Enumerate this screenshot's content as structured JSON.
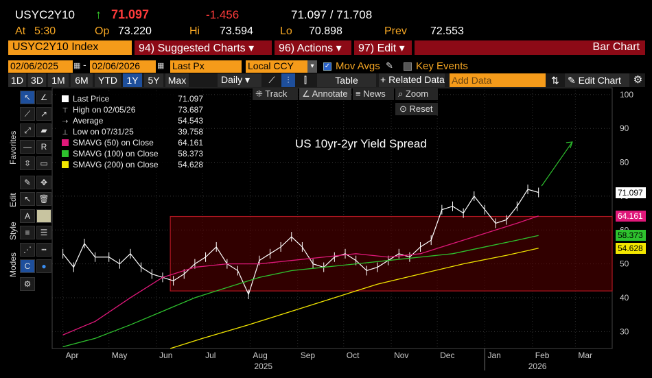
{
  "header": {
    "ticker": "USYC2Y10",
    "arrow": "↑",
    "last": "71.097",
    "change": "-1.456",
    "bid_ask": "71.097 / 71.708",
    "at_label": "At",
    "at_value": "5:30",
    "op_label": "Op",
    "op_value": "73.220",
    "hi_label": "Hi",
    "hi_value": "73.594",
    "lo_label": "Lo",
    "lo_value": "70.898",
    "prev_label": "Prev",
    "prev_value": "72.553"
  },
  "menubar": {
    "security": "USYC2Y10 Index",
    "suggested": "94) Suggested Charts ▾",
    "actions": "96) Actions ▾",
    "edit": "97) Edit ▾",
    "right_title": "Bar Chart"
  },
  "controls": {
    "start_date": "02/06/2025",
    "end_date": "02/06/2026",
    "field": "Last Px",
    "currency": "Local CCY",
    "mov_avgs": "Mov Avgs",
    "key_events": "Key Events"
  },
  "periods": [
    "1D",
    "3D",
    "1M",
    "6M",
    "YTD",
    "1Y",
    "5Y",
    "Max"
  ],
  "selected_period": "1Y",
  "toolbar": {
    "frequency": "Daily",
    "table": "Table",
    "related": "+ Related Data",
    "add_data_placeholder": "Add Data",
    "edit_chart": "Edit Chart",
    "track": "Track",
    "annotate": "Annotate",
    "news": "News",
    "zoom": "Zoom",
    "reset": "Reset"
  },
  "side_tabs": [
    "Favorites",
    "Edit",
    "Style",
    "Modes"
  ],
  "legend": [
    {
      "label": "Last Price",
      "value": "71.097",
      "color": "#ffffff",
      "kind": "box"
    },
    {
      "label": "High on 02/05/26",
      "value": "73.687",
      "color": "#ffffff",
      "kind": "hi"
    },
    {
      "label": "Average",
      "value": "54.543",
      "color": "#ffffff",
      "kind": "avg"
    },
    {
      "label": "Low on 07/31/25",
      "value": "39.758",
      "color": "#ffffff",
      "kind": "lo"
    },
    {
      "label": "SMAVG (50)  on Close",
      "value": "64.161",
      "color": "#e0187a",
      "kind": "box"
    },
    {
      "label": "SMAVG (100)  on Close",
      "value": "58.373",
      "color": "#2ec22e",
      "kind": "box"
    },
    {
      "label": "SMAVG (200)  on Close",
      "value": "54.628",
      "color": "#f2e600",
      "kind": "box"
    }
  ],
  "chart_data": {
    "type": "line",
    "title": "US 10yr-2yr Yield Spread",
    "ylim": [
      25,
      102
    ],
    "yticks": [
      30,
      40,
      50,
      60,
      70,
      80,
      90,
      100
    ],
    "x_months": [
      "Apr",
      "May",
      "Jun",
      "Jul",
      "Aug",
      "Sep",
      "Oct",
      "Nov",
      "Dec",
      "Jan",
      "Feb",
      "Mar"
    ],
    "x_years": [
      "2025",
      "2026"
    ],
    "price_tags": [
      {
        "value": "71.097",
        "y": 71.097,
        "bg": "#ffffff",
        "fg": "#000000"
      },
      {
        "value": "64.161",
        "y": 64.161,
        "bg": "#e0187a",
        "fg": "#ffffff"
      },
      {
        "value": "58.373",
        "y": 58.373,
        "bg": "#2ec22e",
        "fg": "#000000"
      },
      {
        "value": "54.628",
        "y": 54.628,
        "bg": "#f2e600",
        "fg": "#000000"
      }
    ],
    "range_box": {
      "ymin": 42,
      "ymax": 64
    },
    "series": [
      {
        "name": "Last Price",
        "color": "#ffffff",
        "values": [
          {
            "x": "2025-04-01",
            "y": 53
          },
          {
            "x": "2025-04-08",
            "y": 49
          },
          {
            "x": "2025-04-15",
            "y": 56
          },
          {
            "x": "2025-04-22",
            "y": 52
          },
          {
            "x": "2025-05-01",
            "y": 52
          },
          {
            "x": "2025-05-08",
            "y": 50
          },
          {
            "x": "2025-05-15",
            "y": 53
          },
          {
            "x": "2025-05-22",
            "y": 49
          },
          {
            "x": "2025-05-29",
            "y": 47
          },
          {
            "x": "2025-06-05",
            "y": 46
          },
          {
            "x": "2025-06-12",
            "y": 45
          },
          {
            "x": "2025-06-19",
            "y": 47
          },
          {
            "x": "2025-06-26",
            "y": 50
          },
          {
            "x": "2025-07-03",
            "y": 52
          },
          {
            "x": "2025-07-10",
            "y": 55
          },
          {
            "x": "2025-07-17",
            "y": 50
          },
          {
            "x": "2025-07-24",
            "y": 48
          },
          {
            "x": "2025-07-31",
            "y": 41
          },
          {
            "x": "2025-08-07",
            "y": 51
          },
          {
            "x": "2025-08-14",
            "y": 53
          },
          {
            "x": "2025-08-21",
            "y": 55
          },
          {
            "x": "2025-08-28",
            "y": 58
          },
          {
            "x": "2025-09-04",
            "y": 55
          },
          {
            "x": "2025-09-11",
            "y": 50
          },
          {
            "x": "2025-09-18",
            "y": 49
          },
          {
            "x": "2025-09-25",
            "y": 52
          },
          {
            "x": "2025-10-02",
            "y": 53
          },
          {
            "x": "2025-10-09",
            "y": 51
          },
          {
            "x": "2025-10-16",
            "y": 48
          },
          {
            "x": "2025-10-23",
            "y": 49
          },
          {
            "x": "2025-10-30",
            "y": 51
          },
          {
            "x": "2025-11-06",
            "y": 53
          },
          {
            "x": "2025-11-13",
            "y": 52
          },
          {
            "x": "2025-11-20",
            "y": 55
          },
          {
            "x": "2025-11-27",
            "y": 57
          },
          {
            "x": "2025-12-04",
            "y": 66
          },
          {
            "x": "2025-12-11",
            "y": 67
          },
          {
            "x": "2025-12-18",
            "y": 65
          },
          {
            "x": "2025-12-25",
            "y": 70
          },
          {
            "x": "2026-01-01",
            "y": 66
          },
          {
            "x": "2026-01-08",
            "y": 62
          },
          {
            "x": "2026-01-15",
            "y": 63
          },
          {
            "x": "2026-01-22",
            "y": 67
          },
          {
            "x": "2026-01-29",
            "y": 72
          },
          {
            "x": "2026-02-05",
            "y": 71.097
          }
        ]
      },
      {
        "name": "SMAVG (50) on Close",
        "color": "#e0187a",
        "values": [
          {
            "x": "2025-04-01",
            "y": 29
          },
          {
            "x": "2025-04-22",
            "y": 33
          },
          {
            "x": "2025-05-15",
            "y": 40
          },
          {
            "x": "2025-06-05",
            "y": 46
          },
          {
            "x": "2025-06-26",
            "y": 49
          },
          {
            "x": "2025-07-17",
            "y": 50
          },
          {
            "x": "2025-08-07",
            "y": 50
          },
          {
            "x": "2025-08-28",
            "y": 51
          },
          {
            "x": "2025-09-18",
            "y": 52
          },
          {
            "x": "2025-10-09",
            "y": 53
          },
          {
            "x": "2025-10-30",
            "y": 52
          },
          {
            "x": "2025-11-20",
            "y": 53
          },
          {
            "x": "2025-12-11",
            "y": 56
          },
          {
            "x": "2026-01-01",
            "y": 59
          },
          {
            "x": "2026-01-22",
            "y": 62
          },
          {
            "x": "2026-02-05",
            "y": 64.161
          }
        ]
      },
      {
        "name": "SMAVG (100) on Close",
        "color": "#2ec22e",
        "values": [
          {
            "x": "2025-04-01",
            "y": 25.5
          },
          {
            "x": "2025-04-22",
            "y": 28
          },
          {
            "x": "2025-05-15",
            "y": 32
          },
          {
            "x": "2025-06-05",
            "y": 36
          },
          {
            "x": "2025-06-26",
            "y": 40
          },
          {
            "x": "2025-07-17",
            "y": 43
          },
          {
            "x": "2025-08-07",
            "y": 46
          },
          {
            "x": "2025-08-28",
            "y": 48
          },
          {
            "x": "2025-09-18",
            "y": 49
          },
          {
            "x": "2025-10-09",
            "y": 50
          },
          {
            "x": "2025-10-30",
            "y": 51
          },
          {
            "x": "2025-11-20",
            "y": 52
          },
          {
            "x": "2025-12-11",
            "y": 53
          },
          {
            "x": "2026-01-01",
            "y": 55
          },
          {
            "x": "2026-01-22",
            "y": 57
          },
          {
            "x": "2026-02-05",
            "y": 58.373
          }
        ]
      },
      {
        "name": "SMAVG (200) on Close",
        "color": "#f2e600",
        "values": [
          {
            "x": "2025-06-10",
            "y": 25
          },
          {
            "x": "2025-07-01",
            "y": 28
          },
          {
            "x": "2025-07-31",
            "y": 32
          },
          {
            "x": "2025-08-28",
            "y": 36
          },
          {
            "x": "2025-09-25",
            "y": 40
          },
          {
            "x": "2025-10-23",
            "y": 44
          },
          {
            "x": "2025-11-20",
            "y": 47
          },
          {
            "x": "2025-12-18",
            "y": 50
          },
          {
            "x": "2026-01-15",
            "y": 52.5
          },
          {
            "x": "2026-02-05",
            "y": 54.628
          }
        ]
      }
    ]
  }
}
